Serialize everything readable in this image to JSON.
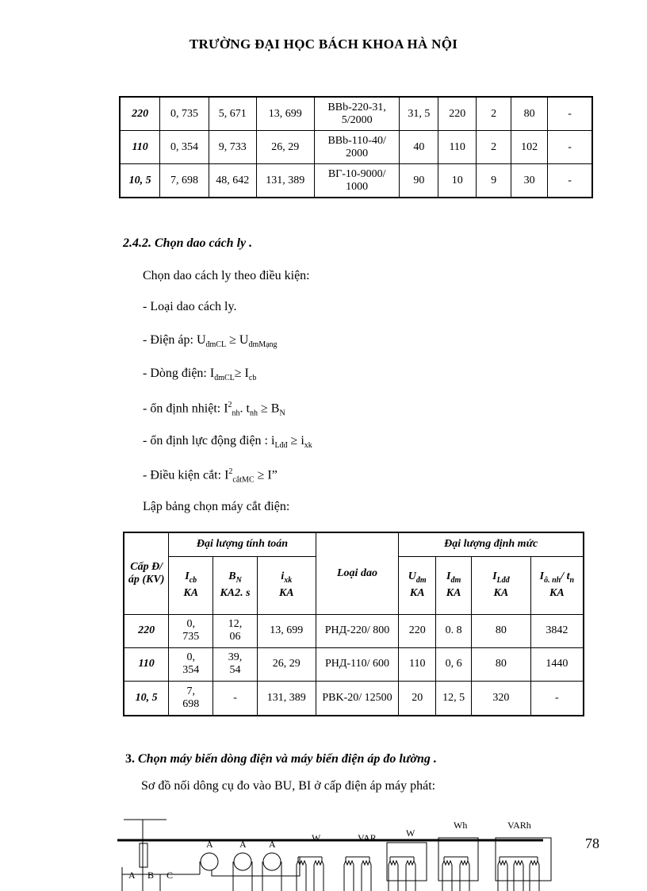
{
  "header": {
    "title": "TRƯỜNG ĐẠI HỌC BÁCH KHOA HÀ NỘI"
  },
  "table1": {
    "rows": [
      [
        "220",
        "0, 735",
        "5, 671",
        "13, 699",
        "BBb-220-31, 5/2000",
        "31, 5",
        "220",
        "2",
        "80",
        "-"
      ],
      [
        "110",
        "0, 354",
        "9, 733",
        "26, 29",
        "BBb-110-40/ 2000",
        "40",
        "110",
        "2",
        "102",
        "-"
      ],
      [
        "10, 5",
        "7, 698",
        "48, 642",
        "131, 389",
        "BГ-10-9000/ 1000",
        "90",
        "10",
        "9",
        "30",
        "-"
      ]
    ]
  },
  "section242": {
    "heading": "2.4.2. Chọn dao cách ly .",
    "intro": "Chọn dao cách ly theo điều kiện:",
    "c1": "- Loại dao cách ly.",
    "c2": {
      "pre": "- Điện áp: U",
      "s1": "đmCL",
      "mid": " ≥ U",
      "s2": "đmMạng"
    },
    "c3": {
      "pre": "- Dòng điện: I",
      "s1": "đmCL",
      "mid": "≥ I",
      "s2": "cb"
    },
    "c4": {
      "pre": "- ổn định nhiệt: I",
      "sup": "2",
      "s1": "nh",
      "mid": ". t",
      "s2": "nh",
      "end": " ≥ B",
      "s3": "N"
    },
    "c5": {
      "pre": "- ổn định lực động điện : i",
      "s1": "Lđđ",
      "mid": " ≥ i",
      "s2": "xk"
    },
    "c6": {
      "pre": "- Điều kiện cắt: I",
      "sup": "2",
      "s1": "cắtMC",
      "end": " ≥ I”"
    },
    "table_intro": "Lập bảng chọn máy cắt điện:"
  },
  "table2": {
    "h_level": "Cấp Đ/ áp (KV)",
    "h_calc": "Đại lượng tính toán",
    "h_type": "Loại dao",
    "h_rated": "Đại lượng định mức",
    "sub": [
      {
        "m": "I",
        "s": "cb",
        "u": "KA"
      },
      {
        "m": "B",
        "s": "N",
        "u": "KA2. s"
      },
      {
        "m": "i",
        "s": "xk",
        "u": "KA"
      },
      {
        "m": "U",
        "s": "đm",
        "u": "KA"
      },
      {
        "m": "I",
        "s": "đm",
        "u": "KA"
      },
      {
        "m": "I",
        "s": "Lđđ",
        "u": "KA"
      },
      {
        "m": "I",
        "s": "ô. nh",
        "m2": "/ t",
        "s2": "n",
        "u": "KA"
      }
    ],
    "rows": [
      [
        "220",
        "0, 735",
        "12, 06",
        "13, 699",
        "PHД-220/ 800",
        "220",
        "0. 8",
        "80",
        "3842"
      ],
      [
        "110",
        "0, 354",
        "39, 54",
        "26, 29",
        "PHД-110/ 600",
        "110",
        "0, 6",
        "80",
        "1440"
      ],
      [
        "10, 5",
        "7, 698",
        "-",
        "131, 389",
        "PBK-20/ 12500",
        "20",
        "12, 5",
        "320",
        "-"
      ]
    ]
  },
  "section3": {
    "num": "3.",
    "heading": "Chọn máy biến dòng điện và máy biến điện áp đo lường .",
    "line": "Sơ đồ nối dông cụ đo vào BU, BI ở cấp điện áp máy phát:"
  },
  "diagram": {
    "labels": [
      "A",
      "B",
      "C",
      "A",
      "A",
      "A",
      "W",
      "VAR",
      "W",
      "Wh",
      "VARh"
    ]
  },
  "page_number": "78"
}
